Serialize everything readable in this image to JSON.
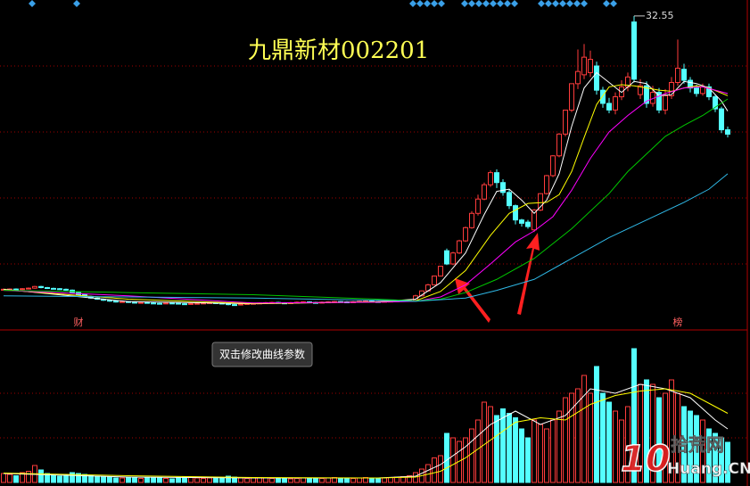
{
  "chart_data": [
    {
      "type": "candlestick",
      "title": "九鼎新材002201",
      "open": [
        7.66,
        7.7,
        7.72,
        7.68,
        7.75,
        7.8,
        7.95,
        7.85,
        7.78,
        7.75,
        7.7,
        7.62,
        7.4,
        7.2,
        7.05,
        6.9,
        6.8,
        6.7,
        6.62,
        6.55,
        6.58,
        6.52,
        6.48,
        6.5,
        6.45,
        6.42,
        6.4,
        6.45,
        6.43,
        6.38,
        6.35,
        6.4,
        6.42,
        6.45,
        6.48,
        6.44,
        6.4,
        6.3,
        6.28,
        6.35,
        6.4,
        6.42,
        6.45,
        6.48,
        6.5,
        6.46,
        6.44,
        6.48,
        6.52,
        6.55,
        6.5,
        6.48,
        6.52,
        6.55,
        6.58,
        6.55,
        6.52,
        6.56,
        6.6,
        6.62,
        6.58,
        6.55,
        6.6,
        6.62,
        6.65,
        6.68,
        6.7,
        7.1,
        7.55,
        8.1,
        8.9,
        11.2,
        10.0,
        11.0,
        12.1,
        13.3,
        14.6,
        15.9,
        17.2,
        18.3,
        17.4,
        16.5,
        15.3,
        14.0,
        13.8,
        13.1,
        14.9,
        16.4,
        18.03,
        19.83,
        21.81,
        23.99,
        26.39,
        27.2,
        27.4,
        28.0,
        25.8,
        24.6,
        24.0,
        25.2,
        26.1,
        32.0,
        25.4,
        26.2,
        24.6,
        25.6,
        24.0,
        25.3,
        26.5,
        27.7,
        26.7,
        26.0,
        25.5,
        26.1,
        25.2,
        24.1,
        22.2
      ],
      "high": [
        7.76,
        7.78,
        7.78,
        7.81,
        7.86,
        8.01,
        8.01,
        7.91,
        7.84,
        7.81,
        7.76,
        7.68,
        7.46,
        7.26,
        7.11,
        6.96,
        6.86,
        6.76,
        6.68,
        6.64,
        6.64,
        6.58,
        6.56,
        6.56,
        6.51,
        6.48,
        6.51,
        6.51,
        6.49,
        6.44,
        6.46,
        6.48,
        6.51,
        6.54,
        6.54,
        6.5,
        6.46,
        6.36,
        6.41,
        6.46,
        6.48,
        6.51,
        6.54,
        6.56,
        6.56,
        6.52,
        6.54,
        6.58,
        6.61,
        6.61,
        6.56,
        6.58,
        6.61,
        6.64,
        6.64,
        6.61,
        6.62,
        6.66,
        6.68,
        6.68,
        6.64,
        6.66,
        6.68,
        6.71,
        6.74,
        6.76,
        7.2,
        7.6,
        8.2,
        8.95,
        9.79,
        11.4,
        11.1,
        12.2,
        13.4,
        14.8,
        16.3,
        17.4,
        18.5,
        18.6,
        17.7,
        16.8,
        15.4,
        14.1,
        14.0,
        15.0,
        16.45,
        18.1,
        19.9,
        21.9,
        24.0,
        26.4,
        29.5,
        30.0,
        29.4,
        28.4,
        26.1,
        25.1,
        25.6,
        26.7,
        27.4,
        32.55,
        26.8,
        26.6,
        26.2,
        26.0,
        25.9,
        27.0,
        30.4,
        28.2,
        27.0,
        26.3,
        26.4,
        26.4,
        25.4,
        24.3,
        22.5
      ],
      "low": [
        7.6,
        7.64,
        7.62,
        7.62,
        7.69,
        7.74,
        7.79,
        7.72,
        7.69,
        7.64,
        7.56,
        7.34,
        7.14,
        6.99,
        6.84,
        6.74,
        6.64,
        6.56,
        6.49,
        6.49,
        6.46,
        6.42,
        6.42,
        6.39,
        6.36,
        6.34,
        6.34,
        6.37,
        6.32,
        6.29,
        6.29,
        6.34,
        6.36,
        6.39,
        6.38,
        6.34,
        6.24,
        6.22,
        6.22,
        6.29,
        6.34,
        6.36,
        6.39,
        6.42,
        6.4,
        6.38,
        6.38,
        6.42,
        6.46,
        6.44,
        6.42,
        6.42,
        6.46,
        6.49,
        6.49,
        6.46,
        6.46,
        6.5,
        6.54,
        6.52,
        6.49,
        6.49,
        6.54,
        6.56,
        6.59,
        6.62,
        6.65,
        7.05,
        7.5,
        8.05,
        8.85,
        9.9,
        9.9,
        10.9,
        12.0,
        13.2,
        14.4,
        15.8,
        17.0,
        16.9,
        16.2,
        15.0,
        13.6,
        13.4,
        13.2,
        12.9,
        14.8,
        16.3,
        17.9,
        19.7,
        21.6,
        23.8,
        25.9,
        26.8,
        27.0,
        25.4,
        24.2,
        23.7,
        23.6,
        24.9,
        25.7,
        26.5,
        25.0,
        24.2,
        24.3,
        23.7,
        23.6,
        25.0,
        26.2,
        26.4,
        25.6,
        25.2,
        25.3,
        24.9,
        23.8,
        21.9,
        21.5
      ],
      "close": [
        7.7,
        7.72,
        7.68,
        7.75,
        7.8,
        7.95,
        7.85,
        7.78,
        7.75,
        7.7,
        7.62,
        7.4,
        7.2,
        7.05,
        6.9,
        6.8,
        6.7,
        6.62,
        6.55,
        6.58,
        6.52,
        6.48,
        6.5,
        6.45,
        6.42,
        6.4,
        6.45,
        6.43,
        6.38,
        6.35,
        6.4,
        6.42,
        6.45,
        6.48,
        6.44,
        6.4,
        6.3,
        6.28,
        6.35,
        6.4,
        6.42,
        6.45,
        6.48,
        6.5,
        6.46,
        6.44,
        6.48,
        6.52,
        6.55,
        6.5,
        6.48,
        6.52,
        6.55,
        6.58,
        6.55,
        6.52,
        6.56,
        6.6,
        6.62,
        6.58,
        6.55,
        6.6,
        6.62,
        6.65,
        6.68,
        6.7,
        7.1,
        7.55,
        8.1,
        8.9,
        9.79,
        10.0,
        11.0,
        12.1,
        13.3,
        14.6,
        15.9,
        17.2,
        18.3,
        17.4,
        16.5,
        15.3,
        14.0,
        13.7,
        13.4,
        14.9,
        16.39,
        18.03,
        19.83,
        21.81,
        23.99,
        26.39,
        27.5,
        28.8,
        28.6,
        25.8,
        24.6,
        24.0,
        25.2,
        26.1,
        27.0,
        26.8,
        26.2,
        24.6,
        25.6,
        24.0,
        25.3,
        26.5,
        27.8,
        26.7,
        26.0,
        25.5,
        26.1,
        25.2,
        24.1,
        22.2,
        21.8
      ],
      "up_color": "#ff3c3c",
      "down_color": "#54ffff",
      "ylim": [
        4,
        34
      ],
      "yticks": [
        10,
        16,
        22,
        28
      ],
      "grid": true,
      "series": [
        {
          "color": "#ffffff",
          "x": [
            0,
            20,
            40,
            60,
            66,
            70,
            74,
            77,
            79,
            81,
            83,
            85,
            87,
            89,
            91,
            93,
            95,
            97,
            99,
            101,
            103,
            105,
            107,
            109,
            111,
            113,
            115,
            116
          ],
          "values": [
            7.7,
            6.58,
            6.38,
            6.57,
            6.8,
            8.3,
            11.0,
            14.5,
            16.6,
            16.8,
            15.8,
            14.6,
            15.8,
            18.2,
            22.5,
            26.0,
            27.4,
            26.5,
            25.6,
            26.6,
            26.4,
            25.3,
            25.4,
            26.6,
            26.4,
            26.0,
            24.8,
            23.9
          ]
        },
        {
          "color": "#ffff00",
          "x": [
            0,
            20,
            40,
            60,
            66,
            70,
            74,
            78,
            81,
            84,
            87,
            89,
            91,
            93,
            95,
            97,
            99,
            101,
            103,
            105,
            107,
            109,
            111,
            113,
            116
          ],
          "values": [
            7.65,
            6.8,
            6.4,
            6.55,
            6.65,
            7.5,
            9.4,
            12.6,
            14.6,
            15.5,
            15.6,
            16.3,
            18.4,
            21.5,
            24.5,
            26.1,
            26.3,
            26.2,
            26.0,
            25.8,
            25.7,
            26.0,
            26.2,
            26.0,
            25.3
          ]
        },
        {
          "color": "#ff00ff",
          "x": [
            0,
            20,
            40,
            60,
            66,
            70,
            74,
            78,
            82,
            85,
            88,
            91,
            94,
            97,
            100,
            103,
            106,
            109,
            112,
            116
          ],
          "values": [
            7.6,
            7.1,
            6.45,
            6.52,
            6.6,
            7.0,
            8.1,
            10.0,
            12.0,
            13.0,
            14.3,
            16.7,
            19.6,
            22.0,
            23.5,
            24.8,
            25.5,
            26.0,
            26.1,
            25.5
          ]
        },
        {
          "color": "#00c800",
          "x": [
            0,
            20,
            40,
            60,
            66,
            70,
            74,
            79,
            85,
            91,
            97,
            100,
            103,
            106,
            109,
            112,
            116
          ],
          "values": [
            7.6,
            7.4,
            7.2,
            6.8,
            6.65,
            6.8,
            7.4,
            8.6,
            10.5,
            13.2,
            16.4,
            18.4,
            20.0,
            21.6,
            22.6,
            23.5,
            25.0
          ]
        },
        {
          "color": "#2fb8e6",
          "x": [
            0,
            20,
            40,
            60,
            66,
            74,
            79,
            85,
            91,
            97,
            103,
            109,
            113,
            116
          ],
          "values": [
            7.1,
            7.0,
            6.9,
            6.7,
            6.6,
            6.9,
            7.6,
            8.6,
            10.5,
            12.4,
            14.0,
            15.6,
            16.8,
            18.2
          ]
        }
      ],
      "markers": [
        {
          "text": "财",
          "x": 12
        },
        {
          "text": "榜",
          "x": 108
        }
      ]
    },
    {
      "type": "bar",
      "values": [
        0.2,
        0.18,
        0.15,
        0.22,
        0.25,
        0.38,
        0.28,
        0.2,
        0.16,
        0.14,
        0.15,
        0.22,
        0.2,
        0.18,
        0.16,
        0.14,
        0.12,
        0.12,
        0.1,
        0.1,
        0.12,
        0.1,
        0.09,
        0.1,
        0.11,
        0.1,
        0.09,
        0.08,
        0.1,
        0.12,
        0.11,
        0.1,
        0.09,
        0.1,
        0.12,
        0.11,
        0.14,
        0.12,
        0.1,
        0.09,
        0.1,
        0.11,
        0.1,
        0.09,
        0.1,
        0.09,
        0.08,
        0.09,
        0.1,
        0.09,
        0.08,
        0.09,
        0.1,
        0.11,
        0.09,
        0.08,
        0.09,
        0.1,
        0.11,
        0.1,
        0.09,
        0.1,
        0.11,
        0.12,
        0.13,
        0.15,
        0.22,
        0.3,
        0.4,
        0.55,
        0.6,
        1.1,
        1.0,
        0.92,
        1.0,
        1.2,
        1.4,
        1.8,
        1.7,
        1.5,
        1.65,
        1.55,
        1.45,
        1.2,
        1.0,
        1.4,
        1.3,
        1.2,
        1.4,
        1.6,
        1.9,
        2.0,
        2.1,
        2.4,
        2.0,
        2.6,
        2.0,
        1.8,
        1.6,
        1.4,
        1.7,
        3.0,
        2.2,
        2.3,
        2.2,
        1.9,
        2.0,
        2.3,
        2.0,
        1.7,
        1.6,
        1.5,
        1.4,
        1.2,
        1.1,
        1.0,
        0.9
      ],
      "ylim": [
        0,
        3.3
      ],
      "yticks": [
        1,
        2
      ],
      "grid": true,
      "series": [
        {
          "color": "#ffffff",
          "x": [
            0,
            20,
            40,
            60,
            66,
            70,
            74,
            78,
            82,
            86,
            90,
            94,
            98,
            102,
            106,
            110,
            114,
            116
          ],
          "values": [
            0.2,
            0.12,
            0.1,
            0.1,
            0.14,
            0.4,
            0.8,
            1.3,
            1.6,
            1.3,
            1.5,
            2.1,
            2.0,
            2.2,
            2.1,
            1.9,
            1.4,
            1.2
          ]
        },
        {
          "color": "#ffff00",
          "x": [
            0,
            20,
            40,
            60,
            66,
            70,
            74,
            78,
            82,
            86,
            90,
            94,
            98,
            102,
            106,
            110,
            114,
            116
          ],
          "values": [
            0.21,
            0.15,
            0.11,
            0.1,
            0.12,
            0.25,
            0.55,
            0.95,
            1.35,
            1.45,
            1.4,
            1.75,
            1.95,
            2.05,
            2.1,
            2.0,
            1.7,
            1.55
          ]
        }
      ]
    }
  ],
  "tooltip": "双击修改曲线参数",
  "watermark": {
    "logo": "10",
    "name": "拾荒网",
    "site": "Huang.CN"
  }
}
